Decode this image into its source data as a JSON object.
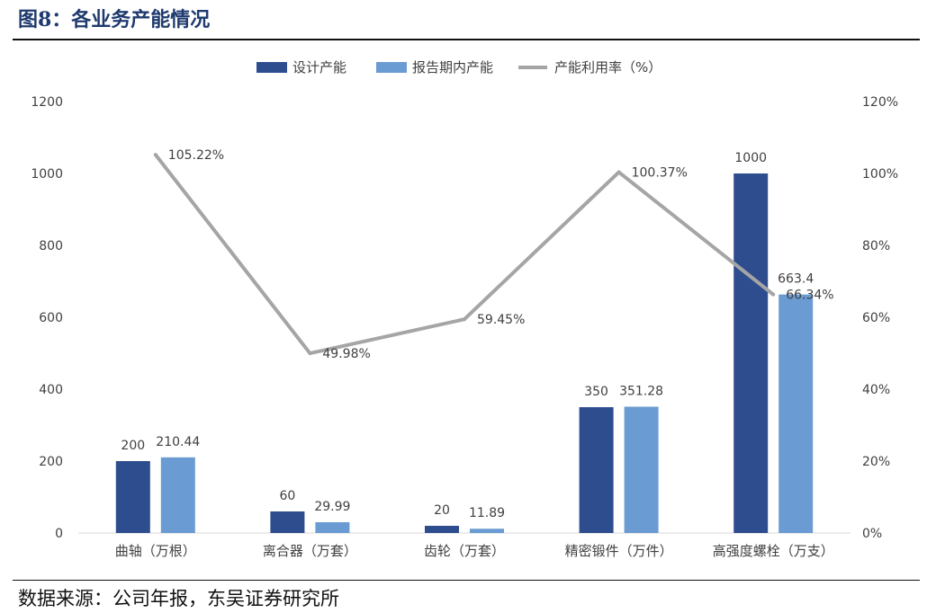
{
  "figure": {
    "title": "图8：各业务产能情况",
    "source": "数据来源：公司年报，东吴证券研究所"
  },
  "colors": {
    "design_bar": "#2e4d8f",
    "actual_bar": "#6a9bd2",
    "line": "#a5a5a5"
  },
  "chart_data": {
    "type": "bar",
    "categories": [
      "曲轴（万根）",
      "离合器（万套）",
      "齿轮（万套）",
      "精密锻件（万件）",
      "高强度螺栓（万支）"
    ],
    "series": [
      {
        "name": "设计产能",
        "type": "bar",
        "axis": "left",
        "values": [
          200,
          60,
          20,
          350,
          1000
        ],
        "labels": [
          "200",
          "60",
          "20",
          "350",
          "1000"
        ]
      },
      {
        "name": "报告期内产能",
        "type": "bar",
        "axis": "left",
        "values": [
          210.44,
          29.99,
          11.89,
          351.28,
          663.4
        ],
        "labels": [
          "210.44",
          "29.99",
          "11.89",
          "351.28",
          "663.4"
        ]
      },
      {
        "name": "产能利用率（%）",
        "type": "line",
        "axis": "right",
        "values": [
          105.22,
          49.98,
          59.45,
          100.37,
          66.34
        ],
        "labels": [
          "105.22%",
          "49.98%",
          "59.45%",
          "100.37%",
          "66.34%"
        ]
      }
    ],
    "ylim": [
      0,
      1200
    ],
    "y_ticks": [
      "0",
      "200",
      "400",
      "600",
      "800",
      "1000",
      "1200"
    ],
    "y2lim": [
      0,
      120
    ],
    "y2_ticks": [
      "0%",
      "20%",
      "40%",
      "60%",
      "80%",
      "100%",
      "120%"
    ],
    "legend_position": "top-center",
    "grid": false
  }
}
